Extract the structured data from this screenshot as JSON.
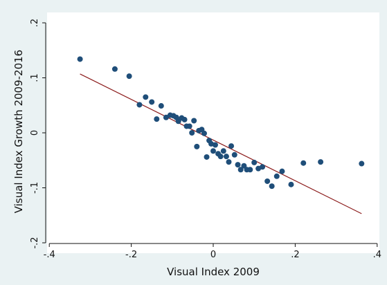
{
  "chart_data": {
    "type": "scatter",
    "xlabel": "Visual Index 2009",
    "ylabel": "Visual Index Growth 2009-2016",
    "xlim": [
      -0.4,
      0.4
    ],
    "ylim": [
      -0.2,
      0.2
    ],
    "x_ticks": [
      -0.4,
      -0.2,
      0,
      0.2,
      0.4
    ],
    "x_tick_labels": [
      "-.4",
      "-.2",
      "0",
      ".2",
      ".4"
    ],
    "y_ticks": [
      -0.2,
      -0.1,
      0,
      0.1,
      0.2
    ],
    "y_tick_labels": [
      "-.2",
      "-.1",
      "0",
      ".1",
      ".2"
    ],
    "grid": false,
    "colors": {
      "points": "#1f4e79",
      "fit_line": "#8b1a1a",
      "plot_bg": "#ffffff",
      "page_bg": "#eaf2f3"
    },
    "series": [
      {
        "points": [
          [
            -0.325,
            0.134
          ],
          [
            -0.24,
            0.116
          ],
          [
            -0.205,
            0.103
          ],
          [
            -0.18,
            0.051
          ],
          [
            -0.165,
            0.065
          ],
          [
            -0.15,
            0.056
          ],
          [
            -0.138,
            0.025
          ],
          [
            -0.127,
            0.049
          ],
          [
            -0.115,
            0.028
          ],
          [
            -0.105,
            0.032
          ],
          [
            -0.097,
            0.031
          ],
          [
            -0.09,
            0.028
          ],
          [
            -0.085,
            0.021
          ],
          [
            -0.077,
            0.027
          ],
          [
            -0.07,
            0.024
          ],
          [
            -0.065,
            0.012
          ],
          [
            -0.058,
            0.012
          ],
          [
            -0.052,
            0.0
          ],
          [
            -0.047,
            0.022
          ],
          [
            -0.04,
            -0.025
          ],
          [
            -0.035,
            0.004
          ],
          [
            -0.028,
            0.006
          ],
          [
            -0.022,
            -0.001
          ],
          [
            -0.016,
            -0.044
          ],
          [
            -0.01,
            -0.014
          ],
          [
            -0.005,
            -0.02
          ],
          [
            0.0,
            -0.033
          ],
          [
            0.005,
            -0.022
          ],
          [
            0.012,
            -0.038
          ],
          [
            0.018,
            -0.043
          ],
          [
            0.025,
            -0.033
          ],
          [
            0.032,
            -0.043
          ],
          [
            0.038,
            -0.053
          ],
          [
            0.044,
            -0.024
          ],
          [
            0.052,
            -0.04
          ],
          [
            0.06,
            -0.058
          ],
          [
            0.067,
            -0.067
          ],
          [
            0.075,
            -0.06
          ],
          [
            0.082,
            -0.067
          ],
          [
            0.09,
            -0.067
          ],
          [
            0.1,
            -0.054
          ],
          [
            0.11,
            -0.065
          ],
          [
            0.12,
            -0.062
          ],
          [
            0.132,
            -0.088
          ],
          [
            0.143,
            -0.097
          ],
          [
            0.155,
            -0.079
          ],
          [
            0.168,
            -0.07
          ],
          [
            0.19,
            -0.094
          ],
          [
            0.22,
            -0.055
          ],
          [
            0.262,
            -0.053
          ],
          [
            0.362,
            -0.056
          ]
        ]
      }
    ],
    "fit_line": [
      [
        -0.325,
        0.107
      ],
      [
        0.362,
        -0.147
      ]
    ]
  }
}
